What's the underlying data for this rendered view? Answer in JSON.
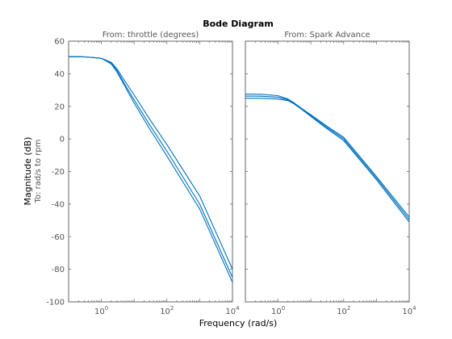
{
  "chart_data": {
    "type": "line",
    "title": "Bode Diagram",
    "xlabel": "Frequency  (rad/s)",
    "ylabel": "Magnitude (dB)",
    "ylabel2": "To: rad/s to rpm",
    "xscale": "log",
    "xlim": [
      0.1,
      10000
    ],
    "ylim": [
      -100,
      60
    ],
    "yticks": [
      60,
      40,
      20,
      0,
      -20,
      -40,
      -60,
      -80,
      -100
    ],
    "xticks": [
      {
        "value": 1,
        "label": "0"
      },
      {
        "value": 100,
        "label": "2"
      },
      {
        "value": 10000,
        "label": "4"
      }
    ],
    "x_tick_base": "10",
    "line_color": "#0072BD",
    "grid": false,
    "panels": [
      {
        "subtitle": "From: throttle (degrees)",
        "series": [
          {
            "x": [
              0.1,
              0.3,
              1,
              2,
              3,
              5,
              10,
              30,
              100,
              1000,
              10000
            ],
            "y": [
              50.5,
              50.4,
              49.5,
              47,
              43,
              36,
              27,
              12,
              -3.5,
              -35,
              -80
            ]
          },
          {
            "x": [
              0.1,
              0.3,
              1,
              2,
              3,
              5,
              10,
              30,
              100,
              1000,
              10000
            ],
            "y": [
              50.5,
              50.4,
              49.5,
              46.5,
              42,
              34,
              24,
              8.5,
              -7.5,
              -40,
              -85
            ]
          },
          {
            "x": [
              0.1,
              0.3,
              1,
              2,
              3,
              5,
              10,
              30,
              100,
              1000,
              10000
            ],
            "y": [
              50.5,
              50.4,
              49.5,
              46,
              41,
              33,
              22,
              6,
              -10.5,
              -43,
              -88
            ]
          }
        ]
      },
      {
        "subtitle": "From: Spark Advance",
        "series": [
          {
            "x": [
              0.1,
              0.3,
              1,
              2,
              3,
              5,
              10,
              30,
              100,
              1000,
              10000
            ],
            "y": [
              27.5,
              27.4,
              26.5,
              24.5,
              22.3,
              19,
              14.8,
              8,
              1,
              -23,
              -48
            ]
          },
          {
            "x": [
              0.1,
              0.3,
              1,
              2,
              3,
              5,
              10,
              30,
              100,
              1000,
              10000
            ],
            "y": [
              26.3,
              26.2,
              25.6,
              24,
              22,
              18.7,
              14.2,
              7.3,
              0,
              -24,
              -49.5
            ]
          },
          {
            "x": [
              0.1,
              0.3,
              1,
              2,
              3,
              5,
              10,
              30,
              100,
              1000,
              10000
            ],
            "y": [
              25,
              24.9,
              24.5,
              23.5,
              21.6,
              18.4,
              13.8,
              6.5,
              -1,
              -25,
              -51
            ]
          }
        ]
      }
    ]
  }
}
